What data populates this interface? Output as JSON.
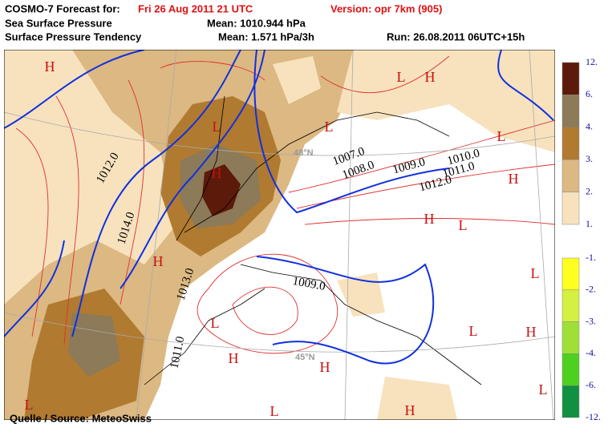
{
  "header": {
    "forecast_label": "COSMO-7 Forecast for:",
    "forecast_time": "Fri 26 Aug 2011 21 UTC",
    "version": "Version: opr 7km (905)",
    "field1": "Sea Surface Pressure",
    "mean1": "Mean: 1010.944 hPa",
    "field2": "Surface Pressure Tendency",
    "mean2": "Mean: 1.571 hPa/3h",
    "run": "Run: 26.08.2011 06UTC+15h"
  },
  "map": {
    "isobar_labels": [
      "1012.0",
      "1014.0",
      "1013.0",
      "1011.0",
      "1007.0",
      "1008.0",
      "1009.0",
      "1010.0",
      "1011.0",
      "1012.0",
      "1009.0"
    ],
    "centers": [
      "H",
      "L",
      "H",
      "L",
      "L",
      "L",
      "H",
      "H",
      "H",
      "L",
      "H",
      "L",
      "L",
      "L",
      "H",
      "H",
      "H",
      "L",
      "H",
      "L",
      "L"
    ],
    "latitudes": [
      "48°N",
      "45°N"
    ],
    "source": "Quelle / Source: MeteoSwiss"
  },
  "legend": {
    "positive": {
      "labels": [
        "12.",
        "6.",
        "4.",
        "3.",
        "2.",
        "1."
      ],
      "colors": [
        "#5c1a0a",
        "#8c7a58",
        "#b07a30",
        "#dcb882",
        "#f7e2bd"
      ]
    },
    "negative": {
      "labels": [
        "-1.",
        "-2.",
        "-3.",
        "-4.",
        "-6.",
        "-12."
      ],
      "colors": [
        "#ffff20",
        "#d4f040",
        "#9ee038",
        "#4ed020",
        "#109040"
      ]
    }
  }
}
